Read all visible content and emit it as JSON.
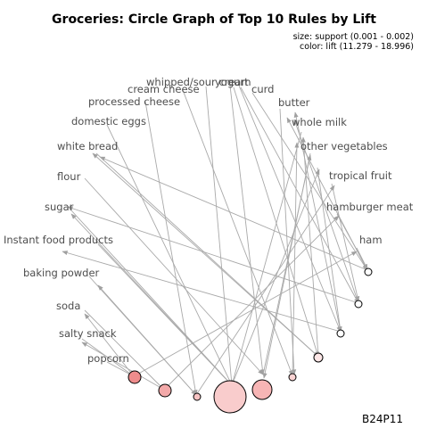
{
  "title": "Groceries: Circle Graph of Top 10 Rules by Lift",
  "legend_size": "size: support (0.001 - 0.002)",
  "legend_color": "color: lift (11.279 - 18.996)",
  "footer": "B24P11",
  "items": [
    {
      "id": "whipped_sour_cream",
      "label": "whipped/sour cream"
    },
    {
      "id": "yogurt",
      "label": "yogurt"
    },
    {
      "id": "curd",
      "label": "curd"
    },
    {
      "id": "butter",
      "label": "butter"
    },
    {
      "id": "whole_milk",
      "label": "whole milk"
    },
    {
      "id": "other_vegetables",
      "label": "other vegetables"
    },
    {
      "id": "tropical_fruit",
      "label": "tropical fruit"
    },
    {
      "id": "hamburger_meat",
      "label": "hamburger meat"
    },
    {
      "id": "ham",
      "label": "ham"
    },
    {
      "id": "cream_cheese",
      "label": "cream cheese"
    },
    {
      "id": "processed_cheese",
      "label": "processed cheese"
    },
    {
      "id": "domestic_eggs",
      "label": "domestic eggs"
    },
    {
      "id": "white_bread",
      "label": "white bread"
    },
    {
      "id": "flour",
      "label": "flour"
    },
    {
      "id": "sugar",
      "label": "sugar"
    },
    {
      "id": "instant_food_products",
      "label": "Instant food products"
    },
    {
      "id": "baking_powder",
      "label": "baking powder"
    },
    {
      "id": "soda",
      "label": "soda"
    },
    {
      "id": "salty_snack",
      "label": "salty snack"
    },
    {
      "id": "popcorn",
      "label": "popcorn"
    }
  ],
  "rules": [
    {
      "id": "rule1",
      "fill": "#ffffff"
    },
    {
      "id": "rule2",
      "fill": "#ffffff"
    },
    {
      "id": "rule3",
      "fill": "#ffffff"
    },
    {
      "id": "rule4",
      "fill": "#fde6e6"
    },
    {
      "id": "rule5",
      "fill": "#fbd3d3"
    },
    {
      "id": "rule6",
      "fill": "#f7b5b5"
    },
    {
      "id": "rule7",
      "fill": "#f9cccc"
    },
    {
      "id": "rule8",
      "fill": "#f7c3c3"
    },
    {
      "id": "rule9",
      "fill": "#f3a9a9"
    },
    {
      "id": "rule10",
      "fill": "#ee8c8c"
    }
  ]
}
